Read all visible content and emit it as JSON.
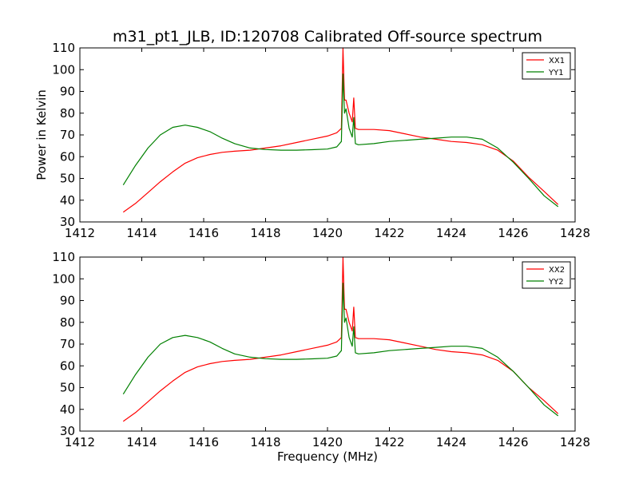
{
  "chart_data": {
    "title": "m31_pt1_JLB, ID:120708 Calibrated Off-source spectrum",
    "xlabel": "Frequency (MHz)",
    "ylabel": "Power in Kelvin",
    "xticks": [
      1412,
      1414,
      1416,
      1418,
      1420,
      1422,
      1424,
      1426,
      1428
    ],
    "yticks": [
      30,
      40,
      50,
      60,
      70,
      80,
      90,
      100,
      110
    ],
    "xlim": [
      1412,
      1428
    ],
    "ylim": [
      30,
      110
    ],
    "colors": {
      "xx": "#ff0000",
      "yy": "#008000"
    },
    "panels": [
      {
        "type": "line",
        "legend_position": "top-right",
        "series": [
          {
            "name": "XX1",
            "color": "#ff0000",
            "x": [
              1413.4,
              1413.8,
              1414.2,
              1414.6,
              1415.0,
              1415.4,
              1415.8,
              1416.2,
              1416.6,
              1417.0,
              1417.5,
              1418.0,
              1418.5,
              1419.0,
              1419.5,
              1420.0,
              1420.3,
              1420.45,
              1420.5,
              1420.55,
              1420.6,
              1420.7,
              1420.8,
              1420.85,
              1420.9,
              1421.0,
              1421.5,
              1422.0,
              1422.5,
              1423.0,
              1423.5,
              1424.0,
              1424.5,
              1425.0,
              1425.5,
              1426.0,
              1426.5,
              1427.0,
              1427.45
            ],
            "y": [
              34.5,
              38.5,
              43.5,
              48.5,
              53.0,
              57.0,
              59.5,
              61.0,
              62.0,
              62.5,
              63.0,
              64.0,
              65.0,
              66.5,
              68.0,
              69.5,
              71.0,
              73.0,
              110,
              86.0,
              86.0,
              80.0,
              76.0,
              87.0,
              73.0,
              72.5,
              72.5,
              72.0,
              70.5,
              69.0,
              68.0,
              67.0,
              66.5,
              65.5,
              63.0,
              58.0,
              50.5,
              44.0,
              38.0
            ]
          },
          {
            "name": "YY1",
            "color": "#008000",
            "x": [
              1413.4,
              1413.8,
              1414.2,
              1414.6,
              1415.0,
              1415.4,
              1415.8,
              1416.2,
              1416.6,
              1417.0,
              1417.5,
              1418.0,
              1418.5,
              1419.0,
              1419.5,
              1420.0,
              1420.3,
              1420.45,
              1420.5,
              1420.55,
              1420.6,
              1420.7,
              1420.8,
              1420.85,
              1420.9,
              1421.0,
              1421.5,
              1422.0,
              1422.5,
              1423.0,
              1423.5,
              1424.0,
              1424.5,
              1425.0,
              1425.5,
              1426.0,
              1426.5,
              1427.0,
              1427.45
            ],
            "y": [
              47.0,
              56.0,
              64.0,
              70.0,
              73.5,
              74.5,
              73.5,
              71.5,
              68.5,
              66.0,
              64.0,
              63.3,
              63.0,
              63.0,
              63.2,
              63.5,
              64.5,
              67.0,
              98.0,
              80.0,
              82.0,
              73.0,
              69.0,
              78.0,
              66.0,
              65.5,
              66.0,
              67.0,
              67.5,
              68.0,
              68.5,
              69.0,
              69.0,
              68.0,
              64.0,
              57.5,
              50.0,
              42.0,
              37.0
            ]
          }
        ]
      },
      {
        "type": "line",
        "legend_position": "top-right",
        "series": [
          {
            "name": "XX2",
            "color": "#ff0000",
            "x": [
              1413.4,
              1413.8,
              1414.2,
              1414.6,
              1415.0,
              1415.4,
              1415.8,
              1416.2,
              1416.6,
              1417.0,
              1417.5,
              1418.0,
              1418.5,
              1419.0,
              1419.5,
              1420.0,
              1420.3,
              1420.45,
              1420.5,
              1420.55,
              1420.6,
              1420.7,
              1420.8,
              1420.85,
              1420.9,
              1421.0,
              1421.5,
              1422.0,
              1422.5,
              1423.0,
              1423.5,
              1424.0,
              1424.5,
              1425.0,
              1425.5,
              1426.0,
              1426.5,
              1427.0,
              1427.45
            ],
            "y": [
              34.5,
              38.5,
              43.5,
              48.5,
              53.0,
              57.0,
              59.5,
              61.0,
              62.0,
              62.5,
              63.0,
              64.0,
              65.0,
              66.5,
              68.0,
              69.5,
              71.0,
              73.0,
              110,
              86.0,
              86.0,
              80.0,
              76.0,
              87.0,
              73.0,
              72.5,
              72.5,
              72.0,
              70.5,
              69.0,
              67.5,
              66.5,
              66.0,
              65.0,
              62.5,
              57.5,
              50.0,
              44.0,
              38.0
            ]
          },
          {
            "name": "YY2",
            "color": "#008000",
            "x": [
              1413.4,
              1413.8,
              1414.2,
              1414.6,
              1415.0,
              1415.4,
              1415.8,
              1416.2,
              1416.6,
              1417.0,
              1417.5,
              1418.0,
              1418.5,
              1419.0,
              1419.5,
              1420.0,
              1420.3,
              1420.45,
              1420.5,
              1420.55,
              1420.6,
              1420.7,
              1420.8,
              1420.85,
              1420.9,
              1421.0,
              1421.5,
              1422.0,
              1422.5,
              1423.0,
              1423.5,
              1424.0,
              1424.5,
              1425.0,
              1425.5,
              1426.0,
              1426.5,
              1427.0,
              1427.45
            ],
            "y": [
              47.0,
              56.0,
              64.0,
              70.0,
              73.0,
              74.0,
              73.0,
              71.0,
              68.0,
              65.5,
              64.0,
              63.3,
              63.0,
              63.0,
              63.2,
              63.5,
              64.5,
              67.0,
              98.0,
              80.0,
              82.0,
              73.0,
              69.0,
              78.0,
              66.0,
              65.5,
              66.0,
              67.0,
              67.5,
              68.0,
              68.5,
              69.0,
              69.0,
              68.0,
              64.0,
              57.5,
              50.0,
              42.0,
              37.0
            ]
          }
        ]
      }
    ]
  }
}
